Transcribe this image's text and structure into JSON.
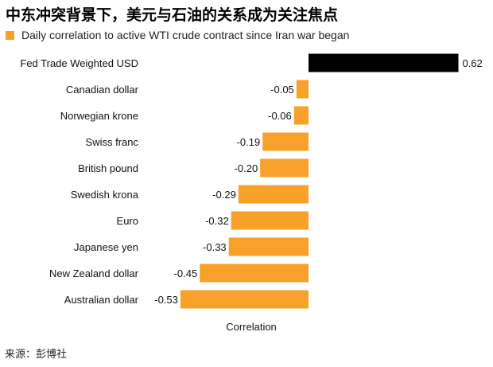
{
  "title": "中东冲突背景下，美元与石油的关系成为关注焦点",
  "subtitle": "Daily correlation to active WTI crude contract since Iran war began",
  "source": "来源：彭博社",
  "colors": {
    "accent": "#f7a12a",
    "highlight": "#000000"
  },
  "chart_data": {
    "type": "bar",
    "orientation": "horizontal",
    "title": "",
    "xlabel": "Correlation",
    "legend": "Daily correlation to active WTI crude contract since Iran war began",
    "legend_placement": "top-left",
    "grid": false,
    "categories": [
      "Fed Trade Weighted USD",
      "Canadian dollar",
      "Norwegian krone",
      "Swiss franc",
      "British pound",
      "Swedish krona",
      "Euro",
      "Japanese yen",
      "New Zealand dollar",
      "Australian dollar"
    ],
    "values": [
      0.62,
      -0.05,
      -0.06,
      -0.19,
      -0.2,
      -0.29,
      -0.32,
      -0.33,
      -0.45,
      -0.53
    ],
    "value_labels": [
      "0.62",
      "-0.05",
      "-0.06",
      "-0.19",
      "-0.20",
      "-0.29",
      "-0.32",
      "-0.33",
      "-0.45",
      "-0.53"
    ],
    "bar_colors": [
      "#000000",
      "#f7a12a",
      "#f7a12a",
      "#f7a12a",
      "#f7a12a",
      "#f7a12a",
      "#f7a12a",
      "#f7a12a",
      "#f7a12a",
      "#f7a12a"
    ],
    "xlim": [
      -0.53,
      0.62
    ]
  }
}
